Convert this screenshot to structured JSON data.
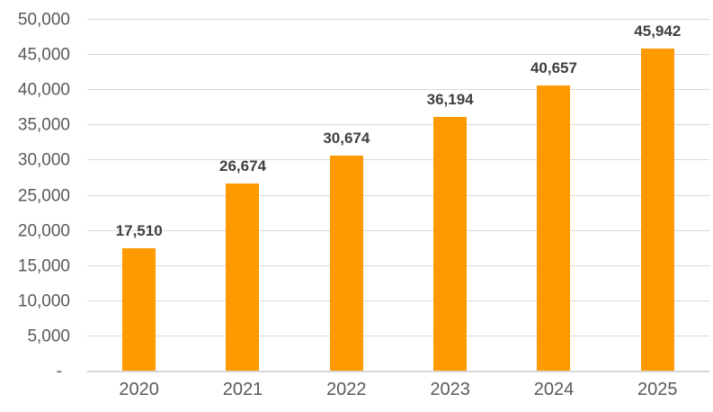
{
  "chart_data": {
    "type": "bar",
    "title": "",
    "xlabel": "",
    "ylabel": "",
    "categories": [
      "2020",
      "2021",
      "2022",
      "2023",
      "2024",
      "2025"
    ],
    "values": [
      17510,
      26674,
      30674,
      36194,
      40657,
      45942
    ],
    "value_labels": [
      "17,510",
      "26,674",
      "30,674",
      "36,194",
      "40,657",
      "45,942"
    ],
    "ylim": [
      0,
      50000
    ],
    "y_ticks": [
      {
        "value": 0,
        "label": "-"
      },
      {
        "value": 5000,
        "label": "5,000"
      },
      {
        "value": 10000,
        "label": "10,000"
      },
      {
        "value": 15000,
        "label": "15,000"
      },
      {
        "value": 20000,
        "label": "20,000"
      },
      {
        "value": 25000,
        "label": "25,000"
      },
      {
        "value": 30000,
        "label": "30,000"
      },
      {
        "value": 35000,
        "label": "35,000"
      },
      {
        "value": 40000,
        "label": "40,000"
      },
      {
        "value": 45000,
        "label": "45,000"
      },
      {
        "value": 50000,
        "label": "50,000"
      }
    ],
    "grid": true,
    "legend_position": "none",
    "colors": {
      "bar": "#ff9900",
      "gridline": "#d9d9d9",
      "axis_line": "#d6d6d6",
      "tick_label": "#595959",
      "value_label": "#3f3f3f",
      "background": "#ffffff"
    }
  }
}
